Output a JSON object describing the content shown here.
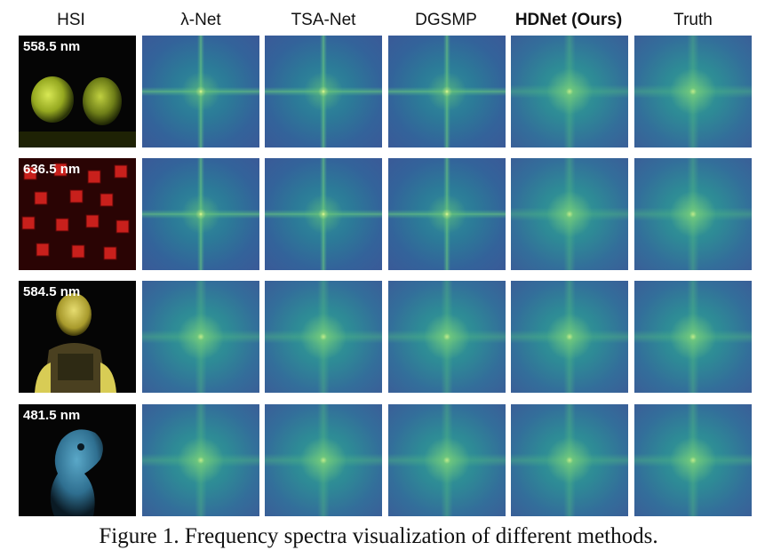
{
  "columns": [
    {
      "label": "HSI",
      "bold": false
    },
    {
      "label": "λ-Net",
      "bold": false
    },
    {
      "label": "TSA-Net",
      "bold": false
    },
    {
      "label": "DGSMP",
      "bold": false
    },
    {
      "label": "HDNet (Ours)",
      "bold": true
    },
    {
      "label": "Truth",
      "bold": false
    }
  ],
  "rows": [
    {
      "wavelength": "558.5 nm",
      "tint": "#b5c82a"
    },
    {
      "wavelength": "636.5 nm",
      "tint": "#c8201c"
    },
    {
      "wavelength": "584.5 nm",
      "tint": "#d8cc55"
    },
    {
      "wavelength": "481.5 nm",
      "tint": "#3a7fa0"
    }
  ],
  "caption": "Figure 1. Frequency spectra visualization of different methods."
}
